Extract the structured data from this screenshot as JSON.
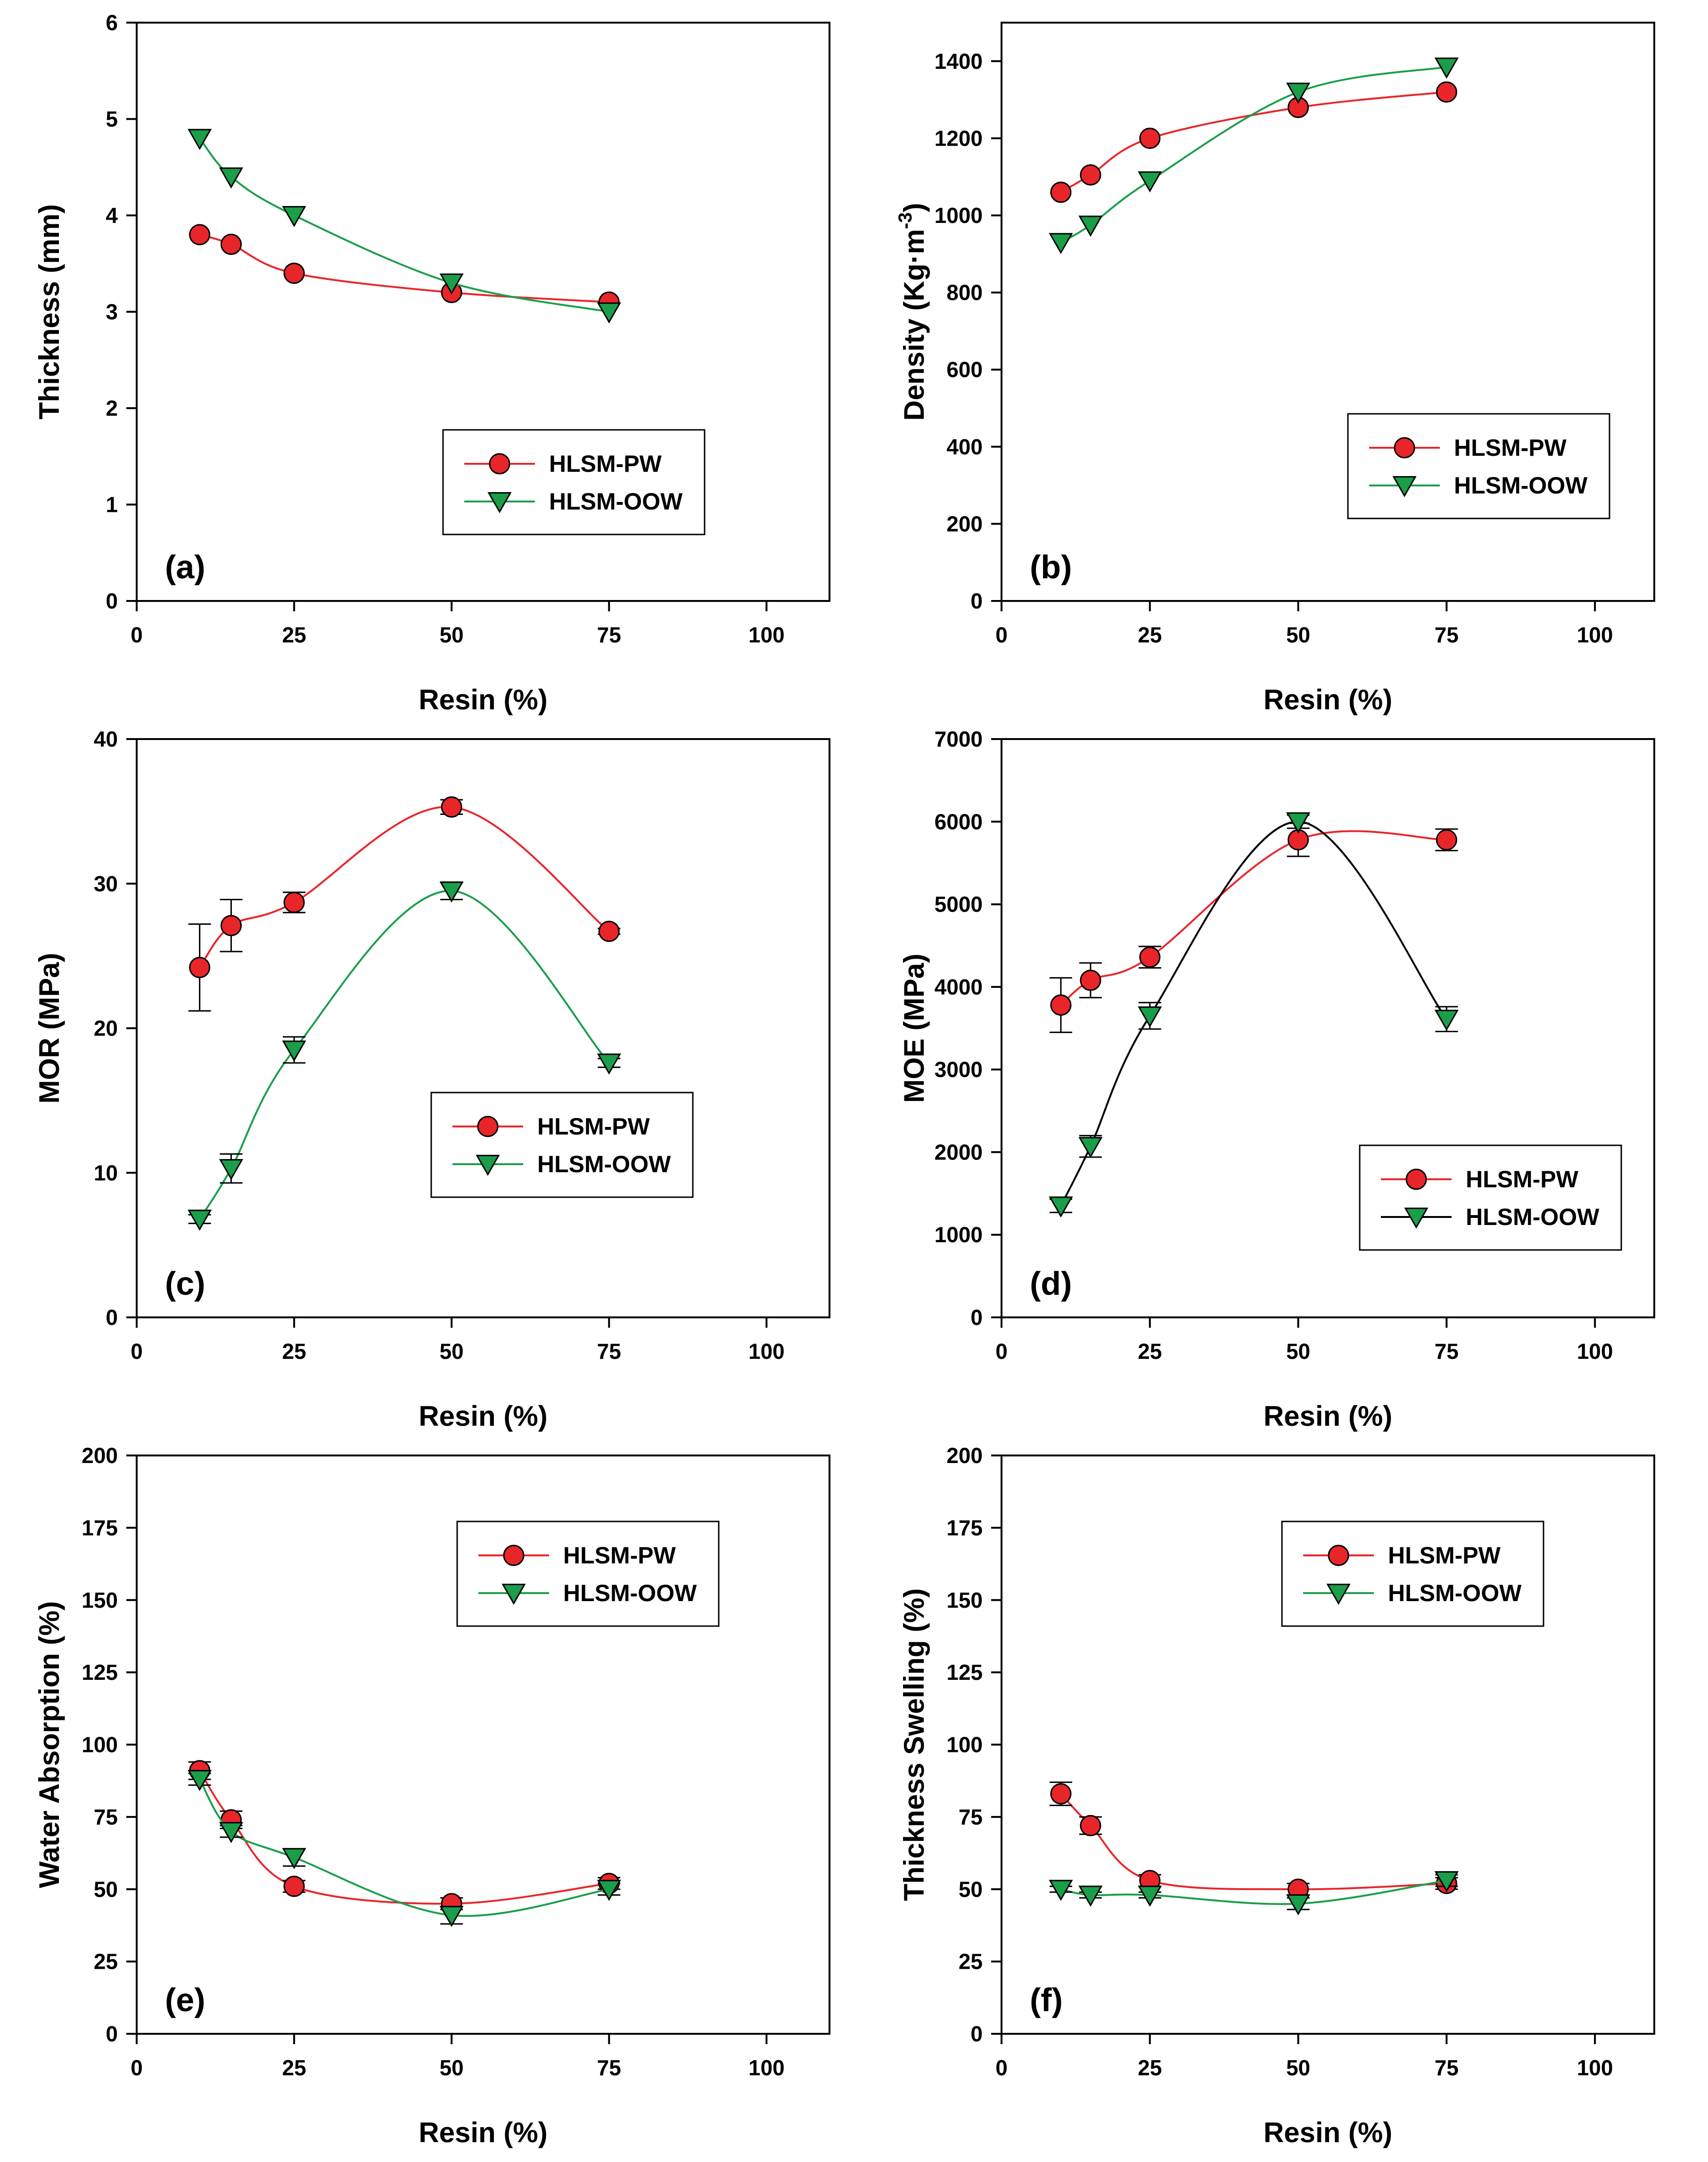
{
  "colors": {
    "pw_line": "#e8262a",
    "pw_marker_fill": "#e8262a",
    "oow_line": "#1a9e4a",
    "oow_marker_fill": "#1a9e4a",
    "oow_line_d": "#000000",
    "marker_edge": "#000000"
  },
  "chart_data": [
    {
      "type": "line",
      "tag": "(a)",
      "xlabel": "Resin (%)",
      "ylabel": "Thickness (mm)",
      "xlim": [
        0,
        110
      ],
      "ylim": [
        0,
        6
      ],
      "xticks": [
        0,
        25,
        50,
        75,
        100
      ],
      "yticks": [
        0,
        1,
        2,
        3,
        4,
        5,
        6
      ],
      "legend_position": "middle-right",
      "series": [
        {
          "name": "HLSM-PW",
          "marker": "circle",
          "x": [
            10,
            15,
            25,
            50,
            75
          ],
          "values": [
            3.8,
            3.7,
            3.4,
            3.2,
            3.1
          ],
          "err": [
            0,
            0,
            0,
            0,
            0
          ]
        },
        {
          "name": "HLSM-OOW",
          "marker": "triangle-down",
          "x": [
            10,
            15,
            25,
            50,
            75
          ],
          "values": [
            4.8,
            4.4,
            4.0,
            3.3,
            3.0
          ],
          "err": [
            0,
            0,
            0,
            0,
            0
          ]
        }
      ]
    },
    {
      "type": "line",
      "tag": "(b)",
      "xlabel": "Resin (%)",
      "ylabel": "Density (Kg·m",
      "ylabel_sup": "-3",
      "ylabel_end": ")",
      "xlim": [
        0,
        110
      ],
      "ylim": [
        0,
        1500
      ],
      "xticks": [
        0,
        25,
        50,
        75,
        100
      ],
      "yticks": [
        0,
        200,
        400,
        600,
        800,
        1000,
        1200,
        1400
      ],
      "legend_position": "middle-right",
      "series": [
        {
          "name": "HLSM-PW",
          "marker": "circle",
          "x": [
            10,
            15,
            25,
            50,
            75
          ],
          "values": [
            1060,
            1105,
            1200,
            1280,
            1320
          ],
          "err": [
            0,
            0,
            0,
            0,
            0
          ]
        },
        {
          "name": "HLSM-OOW",
          "marker": "triangle-down",
          "x": [
            10,
            15,
            25,
            50,
            75
          ],
          "values": [
            930,
            975,
            1090,
            1320,
            1385
          ],
          "err": [
            0,
            0,
            0,
            0,
            0
          ]
        }
      ]
    },
    {
      "type": "line",
      "tag": "(c)",
      "xlabel": "Resin (%)",
      "ylabel": "MOR (MPa)",
      "xlim": [
        0,
        110
      ],
      "ylim": [
        0,
        40
      ],
      "xticks": [
        0,
        25,
        50,
        75,
        100
      ],
      "yticks": [
        0,
        10,
        20,
        30,
        40
      ],
      "legend_position": "middle-right",
      "series": [
        {
          "name": "HLSM-PW",
          "marker": "circle",
          "x": [
            10,
            15,
            25,
            50,
            75
          ],
          "values": [
            24.2,
            27.1,
            28.7,
            35.3,
            26.7
          ],
          "err": [
            3.0,
            1.8,
            0.7,
            0.5,
            0.2
          ]
        },
        {
          "name": "HLSM-OOW",
          "marker": "triangle-down",
          "x": [
            10,
            15,
            25,
            50,
            75
          ],
          "values": [
            6.8,
            10.3,
            18.5,
            29.5,
            17.6
          ],
          "err": [
            0.3,
            1.0,
            0.9,
            0.6,
            0.3
          ]
        }
      ]
    },
    {
      "type": "line",
      "tag": "(d)",
      "xlabel": "Resin (%)",
      "ylabel": "MOE (MPa)",
      "xlim": [
        0,
        110
      ],
      "ylim": [
        0,
        7000
      ],
      "xticks": [
        0,
        25,
        50,
        75,
        100
      ],
      "yticks": [
        0,
        1000,
        2000,
        3000,
        4000,
        5000,
        6000,
        7000
      ],
      "legend_position": "lower-right",
      "series": [
        {
          "name": "HLSM-PW",
          "marker": "circle",
          "x": [
            10,
            15,
            25,
            50,
            75
          ],
          "values": [
            3780,
            4080,
            4360,
            5780,
            5780
          ],
          "err": [
            330,
            210,
            130,
            200,
            130
          ]
        },
        {
          "name": "HLSM-OOW",
          "marker": "triangle-down",
          "x": [
            10,
            15,
            25,
            50,
            75
          ],
          "values": [
            1350,
            2070,
            3650,
            6000,
            3610
          ],
          "err": [
            80,
            130,
            160,
            80,
            150
          ]
        }
      ]
    },
    {
      "type": "line",
      "tag": "(e)",
      "xlabel": "Resin (%)",
      "ylabel": "Water Absorption (%)",
      "xlim": [
        0,
        110
      ],
      "ylim": [
        0,
        200
      ],
      "xticks": [
        0,
        25,
        50,
        75,
        100
      ],
      "yticks": [
        0,
        25,
        50,
        75,
        100,
        125,
        150,
        175,
        200
      ],
      "legend_position": "upper-right",
      "series": [
        {
          "name": "HLSM-PW",
          "marker": "circle",
          "x": [
            10,
            15,
            25,
            50,
            75
          ],
          "values": [
            91,
            74,
            51,
            45,
            52
          ],
          "err": [
            3,
            3,
            2,
            2,
            2
          ]
        },
        {
          "name": "HLSM-OOW",
          "marker": "triangle-down",
          "x": [
            10,
            15,
            25,
            50,
            75
          ],
          "values": [
            88,
            70,
            61,
            41,
            50
          ],
          "err": [
            2,
            2,
            3,
            3,
            2
          ]
        }
      ]
    },
    {
      "type": "line",
      "tag": "(f)",
      "xlabel": "Resin (%)",
      "ylabel": "Thickness Swelling (%)",
      "xlim": [
        0,
        110
      ],
      "ylim": [
        0,
        200
      ],
      "xticks": [
        0,
        25,
        50,
        75,
        100
      ],
      "yticks": [
        0,
        25,
        50,
        75,
        100,
        125,
        150,
        175,
        200
      ],
      "legend_position": "upper-right",
      "series": [
        {
          "name": "HLSM-PW",
          "marker": "circle",
          "x": [
            10,
            15,
            25,
            50,
            75
          ],
          "values": [
            83,
            72,
            53,
            50,
            52
          ],
          "err": [
            4,
            3,
            2,
            2,
            2
          ]
        },
        {
          "name": "HLSM-OOW",
          "marker": "triangle-down",
          "x": [
            10,
            15,
            25,
            50,
            75
          ],
          "values": [
            50,
            48,
            48,
            45,
            53
          ],
          "err": [
            1,
            1,
            1,
            2,
            2
          ]
        }
      ]
    }
  ]
}
